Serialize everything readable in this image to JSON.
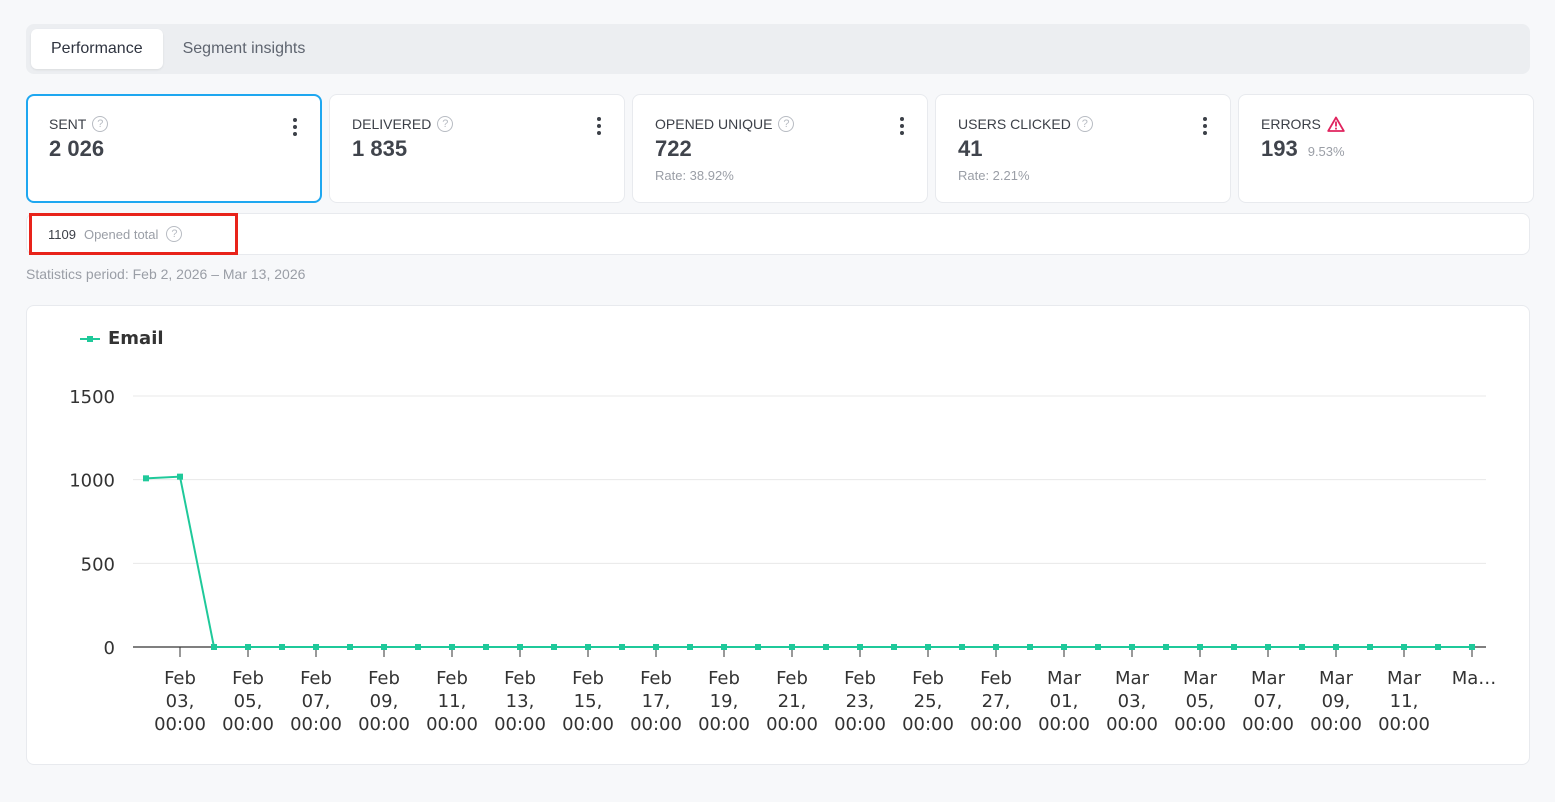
{
  "tabs": [
    {
      "label": "Performance",
      "active": true
    },
    {
      "label": "Segment insights",
      "active": false
    }
  ],
  "cards": [
    {
      "label": "SENT",
      "value": "2 026",
      "icon": "help-icon",
      "menu": true
    },
    {
      "label": "DELIVERED",
      "value": "1 835",
      "icon": "help-icon",
      "menu": true
    },
    {
      "label": "OPENED UNIQUE",
      "value": "722",
      "sub": "Rate: 38.92%",
      "icon": "help-icon",
      "menu": true
    },
    {
      "label": "USERS CLICKED",
      "value": "41",
      "sub": "Rate: 2.21%",
      "icon": "help-icon",
      "menu": true
    },
    {
      "label": "ERRORS",
      "value": "193",
      "pct": "9.53%",
      "icon": "warning-icon",
      "menu": false
    }
  ],
  "opened_total": {
    "value": "1109",
    "label": "Opened total"
  },
  "period": "Statistics period: Feb 2, 2026 – Mar 13, 2026",
  "colors": {
    "accent": "#1ea7f0",
    "series": "#1fc99a",
    "error": "#e0245e",
    "highlight": "#e8231a"
  },
  "chart_data": {
    "type": "line",
    "legend": "top-left",
    "series": [
      {
        "name": "Email",
        "values": [
          1008,
          1018,
          0,
          0,
          0,
          0,
          0,
          0,
          0,
          0,
          0,
          0,
          0,
          0,
          0,
          0,
          0,
          0,
          0,
          0,
          0,
          0,
          0,
          0,
          0,
          0,
          0,
          0,
          0,
          0,
          0,
          0,
          0,
          0,
          0,
          0,
          0,
          0,
          0,
          0
        ]
      }
    ],
    "x_start": "2026-02-02",
    "x_end": "2026-03-13",
    "x_step": "1 day",
    "ylim": [
      0,
      1500
    ],
    "yticks": [
      "1500",
      "1000",
      "500",
      "0"
    ],
    "xtick_labels": [
      [
        "Feb",
        "03,",
        "00:00"
      ],
      [
        "Feb",
        "05,",
        "00:00"
      ],
      [
        "Feb",
        "07,",
        "00:00"
      ],
      [
        "Feb",
        "09,",
        "00:00"
      ],
      [
        "Feb",
        "11,",
        "00:00"
      ],
      [
        "Feb",
        "13,",
        "00:00"
      ],
      [
        "Feb",
        "15,",
        "00:00"
      ],
      [
        "Feb",
        "17,",
        "00:00"
      ],
      [
        "Feb",
        "19,",
        "00:00"
      ],
      [
        "Feb",
        "21,",
        "00:00"
      ],
      [
        "Feb",
        "23,",
        "00:00"
      ],
      [
        "Feb",
        "25,",
        "00:00"
      ],
      [
        "Feb",
        "27,",
        "00:00"
      ],
      [
        "Mar",
        "01,",
        "00:00"
      ],
      [
        "Mar",
        "03,",
        "00:00"
      ],
      [
        "Mar",
        "05,",
        "00:00"
      ],
      [
        "Mar",
        "07,",
        "00:00"
      ],
      [
        "Mar",
        "09,",
        "00:00"
      ],
      [
        "Mar",
        "11,",
        "00:00"
      ],
      [
        "Ma…"
      ]
    ],
    "grid": true
  }
}
